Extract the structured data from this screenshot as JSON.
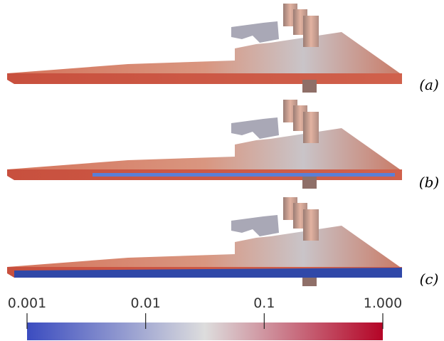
{
  "panels": [
    {
      "label": "(a)"
    },
    {
      "label": "(b)"
    },
    {
      "label": "(c)"
    }
  ],
  "colorbar": {
    "scale": "log",
    "range": [
      0.001,
      1
    ],
    "ticks": [
      0.001,
      0.01,
      0.1,
      {
        "value": 1,
        "label": "1.000"
      }
    ],
    "colors": [
      "#3b4cc0",
      "#dddddd",
      "#b40426"
    ]
  }
}
